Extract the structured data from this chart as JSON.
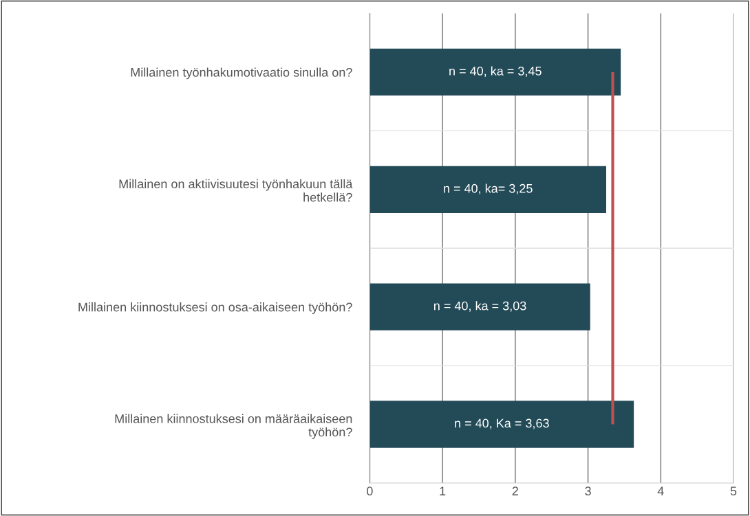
{
  "chart_data": {
    "type": "bar",
    "orientation": "horizontal",
    "categories": [
      "Millainen työnhakumotivaatio sinulla on?",
      "Millainen on aktiivisuutesi työnhakuun tällä\nhetkellä?",
      "Millainen kiinnostuksesi on osa-aikaiseen työhön?",
      "Millainen kiinnostuksesi on määräaikaiseen\ntyöhön?"
    ],
    "values": [
      3.45,
      3.25,
      3.03,
      3.63
    ],
    "value_labels": [
      "n = 40, ka = 3,45",
      "n = 40, ka= 3,25",
      "n = 40, ka = 3,03",
      "n = 40, Ka = 3,63"
    ],
    "color": "#234a57",
    "xlim": [
      0,
      5
    ],
    "xticks": [
      0,
      1,
      2,
      3,
      4,
      5
    ],
    "grid": "x",
    "ref_lines": [
      {
        "axis": "x",
        "value": 3.34,
        "color": "#c0504d",
        "line_style": "solid"
      }
    ]
  }
}
